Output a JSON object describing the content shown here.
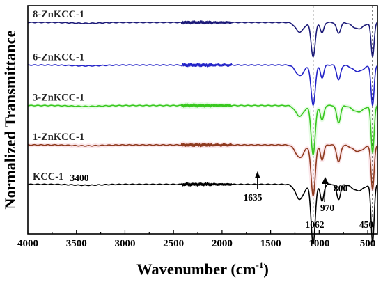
{
  "chart_data": {
    "type": "line",
    "title": "",
    "xlabel": "Wavenumber (cm",
    "xlabel_sup": "-1",
    "xlabel_end": ")",
    "ylabel": "Normalized Transmittance",
    "xlim": [
      4000,
      400
    ],
    "x_ticks": [
      4000,
      3500,
      3000,
      2500,
      2000,
      1500,
      1000,
      500
    ],
    "x_tick_labels": [
      "4000",
      "3500",
      "3000",
      "2500",
      "2000",
      "1500",
      "1000",
      "500"
    ],
    "reference_lines": [
      1062,
      450
    ],
    "series": [
      {
        "name": "8-ZnKCC-1",
        "color": "#1c1a78",
        "halo": "",
        "baseline": 0.96,
        "bands": [
          {
            "wavenumber": 1200,
            "depth": 0.045,
            "width": 60
          },
          {
            "wavenumber": 1062,
            "depth": 0.16,
            "width": 30
          },
          {
            "wavenumber": 970,
            "depth": 0.05,
            "width": 25
          },
          {
            "wavenumber": 800,
            "depth": 0.05,
            "width": 30
          },
          {
            "wavenumber": 450,
            "depth": 0.16,
            "width": 22
          },
          {
            "wavenumber": 600,
            "depth": 0.03,
            "width": 80
          }
        ]
      },
      {
        "name": "6-ZnKCC-1",
        "color": "#2323c8",
        "halo": "",
        "baseline": 0.76,
        "bands": [
          {
            "wavenumber": 1200,
            "depth": 0.05,
            "width": 60
          },
          {
            "wavenumber": 1062,
            "depth": 0.19,
            "width": 30
          },
          {
            "wavenumber": 970,
            "depth": 0.06,
            "width": 25
          },
          {
            "wavenumber": 800,
            "depth": 0.07,
            "width": 28
          },
          {
            "wavenumber": 450,
            "depth": 0.19,
            "width": 22
          },
          {
            "wavenumber": 600,
            "depth": 0.03,
            "width": 80
          }
        ]
      },
      {
        "name": "3-ZnKCC-1",
        "color": "#38c81e",
        "halo": "#aaf0a0",
        "baseline": 0.57,
        "bands": [
          {
            "wavenumber": 1200,
            "depth": 0.05,
            "width": 60
          },
          {
            "wavenumber": 1062,
            "depth": 0.23,
            "width": 30
          },
          {
            "wavenumber": 970,
            "depth": 0.07,
            "width": 25
          },
          {
            "wavenumber": 800,
            "depth": 0.08,
            "width": 28
          },
          {
            "wavenumber": 450,
            "depth": 0.22,
            "width": 22
          },
          {
            "wavenumber": 600,
            "depth": 0.03,
            "width": 80
          }
        ]
      },
      {
        "name": "1-ZnKCC-1",
        "color": "#8f3a1e",
        "halo": "#f2a8b8",
        "baseline": 0.385,
        "bands": [
          {
            "wavenumber": 1200,
            "depth": 0.06,
            "width": 60
          },
          {
            "wavenumber": 1062,
            "depth": 0.24,
            "width": 30
          },
          {
            "wavenumber": 970,
            "depth": 0.07,
            "width": 25
          },
          {
            "wavenumber": 800,
            "depth": 0.08,
            "width": 28
          },
          {
            "wavenumber": 450,
            "depth": 0.21,
            "width": 22
          },
          {
            "wavenumber": 600,
            "depth": 0.03,
            "width": 80
          }
        ]
      },
      {
        "name": "KCC-1",
        "color": "#000000",
        "halo": "",
        "baseline": 0.2,
        "bands": [
          {
            "wavenumber": 1200,
            "depth": 0.07,
            "width": 60
          },
          {
            "wavenumber": 1062,
            "depth": 0.28,
            "width": 30
          },
          {
            "wavenumber": 970,
            "depth": 0.08,
            "width": 25
          },
          {
            "wavenumber": 800,
            "depth": 0.07,
            "width": 28
          },
          {
            "wavenumber": 450,
            "depth": 0.27,
            "width": 22
          },
          {
            "wavenumber": 600,
            "depth": 0.03,
            "width": 80
          }
        ]
      }
    ],
    "annotations": [
      {
        "text": "3400",
        "wavenumber": 3400,
        "arrow": false
      },
      {
        "text": "1635",
        "wavenumber": 1635,
        "arrow": true
      },
      {
        "text": "970",
        "wavenumber": 970,
        "arrow": true
      },
      {
        "text": "800",
        "wavenumber": 800,
        "arrow": false
      },
      {
        "text": "1062",
        "wavenumber": 1062,
        "arrow": false
      },
      {
        "text": "450",
        "wavenumber": 450,
        "arrow": false
      }
    ]
  }
}
